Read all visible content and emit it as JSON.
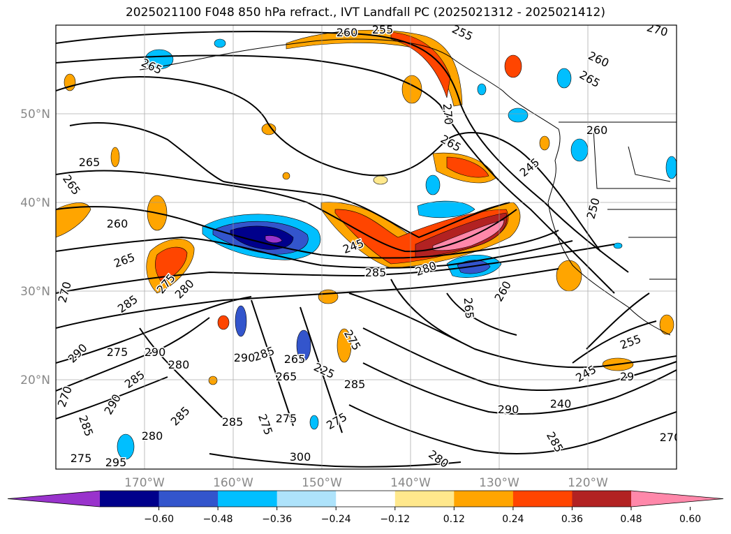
{
  "title": "2025021100 F048 850 hPa refract., IVT Landfall PC (2025021312 - 2025021412)",
  "map": {
    "projection": "plate-carree",
    "lon_range_deg": [
      -180,
      -110
    ],
    "lat_range_deg": [
      10,
      60
    ],
    "lat_ticks": [
      "20°N",
      "30°N",
      "40°N",
      "50°N"
    ],
    "lon_ticks": [
      "170°W",
      "160°W",
      "150°W",
      "140°W",
      "130°W",
      "120°W"
    ],
    "gridlines": true,
    "contour_labels": [
      "260",
      "255",
      "255",
      "270",
      "265",
      "260",
      "265",
      "265",
      "265",
      "260",
      "265",
      "270",
      "260",
      "245",
      "250",
      "265",
      "275",
      "280",
      "285",
      "280",
      "260",
      "265",
      "245",
      "285",
      "270",
      "290",
      "275",
      "290",
      "280",
      "285",
      "290",
      "270",
      "285",
      "265",
      "285",
      "225",
      "265",
      "290",
      "285",
      "285",
      "275",
      "275",
      "275",
      "285",
      "280",
      "275",
      "295",
      "300",
      "280",
      "290",
      "285",
      "240",
      "245",
      "255",
      "29",
      "270",
      "275"
    ]
  },
  "colorbar": {
    "extend": "both",
    "ticks": [
      "−0.60",
      "−0.48",
      "−0.36",
      "−0.24",
      "−0.12",
      "0.12",
      "0.24",
      "0.36",
      "0.48",
      "0.60"
    ],
    "colors": [
      "#9933cc",
      "#00008b",
      "#3355cc",
      "#00bfff",
      "#aee3fb",
      "#ffffff",
      "#ffe88c",
      "#ffa500",
      "#ff4500",
      "#b22222",
      "#ff88aa"
    ]
  }
}
